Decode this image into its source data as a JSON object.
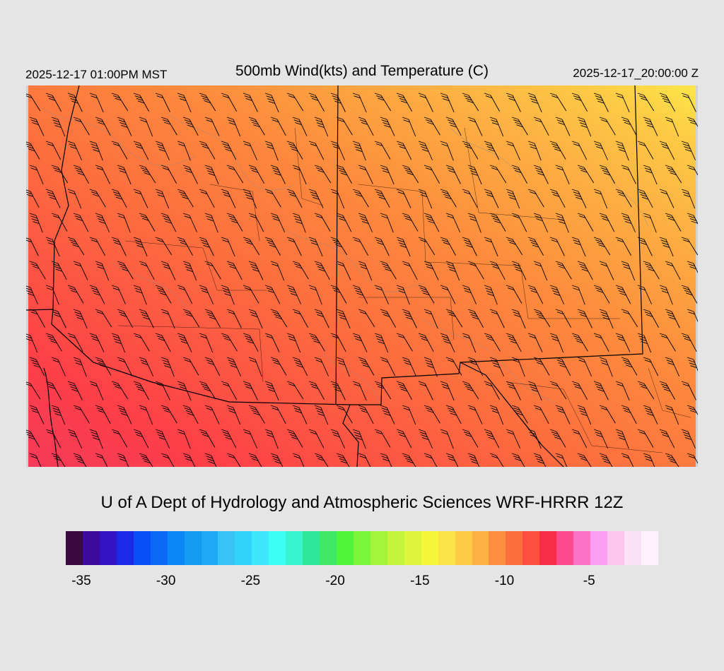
{
  "header": {
    "valid_local": "2025-12-17 01:00PM MST",
    "title": "500mb Wind(kts) and Temperature (C)",
    "valid_utc": "2025-12-17_20:00:00 Z"
  },
  "footer": {
    "credit": "U of A Dept of Hydrology and Atmospheric Sciences WRF-HRRR 12Z"
  },
  "legend": {
    "colors": [
      "#3a0a40",
      "#3d0a99",
      "#3214c4",
      "#1a2ae6",
      "#0a4ff5",
      "#0a6af5",
      "#0a86f5",
      "#139bf2",
      "#1fa9f5",
      "#38c3f5",
      "#31d3f8",
      "#3de8fc",
      "#3efdf5",
      "#38f5d0",
      "#2ee89a",
      "#3ee862",
      "#4ef53a",
      "#7af53a",
      "#a2f53a",
      "#c5f53a",
      "#ddf53a",
      "#f5f53a",
      "#fde34a",
      "#fdcb45",
      "#fdb043",
      "#fd8e3d",
      "#fd6e3e",
      "#fd4e3e",
      "#f82e48",
      "#fc4a8c",
      "#fc72c4",
      "#fc9ef2",
      "#fcc5ee",
      "#fce1f6",
      "#fdf2fb"
    ],
    "ticks": [
      {
        "label": "-35",
        "value": -35
      },
      {
        "label": "-30",
        "value": -30
      },
      {
        "label": "-25",
        "value": -25
      },
      {
        "label": "-20",
        "value": -20
      },
      {
        "label": "-15",
        "value": -15
      },
      {
        "label": "-10",
        "value": -10
      },
      {
        "label": "-5",
        "value": -5
      }
    ],
    "range": [
      -36,
      -1
    ]
  },
  "map": {
    "field_colors": {
      "magenta": "#f53a5a",
      "red": "#fd3f48",
      "orange_red": "#fd6e3e",
      "orange": "#fd8c3d",
      "amber": "#fdb043",
      "yellow_orange": "#fdcb45",
      "yellow": "#fde74a"
    },
    "barb_color": "#000000",
    "border_color": "#000000",
    "terrain_contour_color": "#8a8a8a"
  }
}
